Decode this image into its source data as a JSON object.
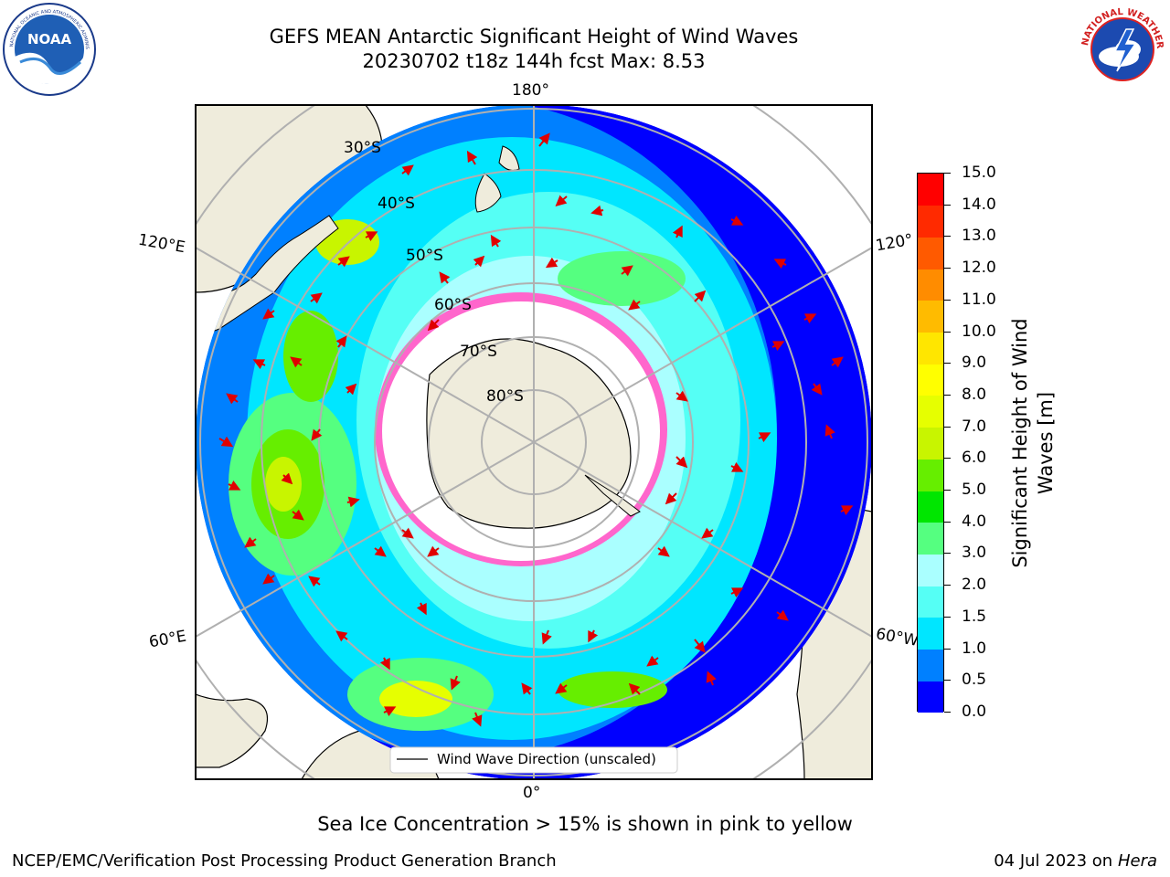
{
  "header": {
    "title_line1": "GEFS MEAN Antarctic Significant Height of Wind Waves",
    "title_line2": "20230702 t18z 144h fcst   Max: 8.53"
  },
  "logos": {
    "left": "NOAA",
    "left_ring_text": "NATIONAL OCEANIC AND ATMOSPHERIC ADMINISTRATION · U.S. DEPARTMENT OF COMMERCE",
    "right_ring_text": "NATIONAL WEATHER SERVICE"
  },
  "map": {
    "longitude_labels": {
      "top": "180°",
      "bottom": "0°",
      "left_upper": "120°E",
      "left_lower": "60°E",
      "right_upper": "120°",
      "right_lower": "60°W"
    },
    "latitude_labels": [
      "30°S",
      "40°S",
      "50°S",
      "60°S",
      "70°S",
      "80°S"
    ],
    "legend_label": "Wind Wave Direction (unscaled)"
  },
  "colorbar": {
    "title": "Significant Height of Wind Waves [m]",
    "ticks": [
      "0.0",
      "0.5",
      "1.0",
      "1.5",
      "2.0",
      "3.0",
      "4.0",
      "5.0",
      "6.0",
      "7.0",
      "8.0",
      "9.0",
      "10.0",
      "11.0",
      "12.0",
      "13.0",
      "14.0",
      "15.0"
    ],
    "colors": [
      "#0000ff",
      "#0080ff",
      "#00e6ff",
      "#55fff5",
      "#aaffff",
      "#55ff80",
      "#00e600",
      "#66ee00",
      "#c8f500",
      "#e6ff00",
      "#ffff00",
      "#ffe600",
      "#ffbb00",
      "#ff8c00",
      "#ff5a00",
      "#ff2a00",
      "#ff0000"
    ]
  },
  "footer": {
    "note": "Sea Ice Concentration > 15% is shown in pink to yellow",
    "left": "NCEP/EMC/Verification Post Processing Product Generation Branch",
    "date": "04 Jul 2023 on",
    "host": "Hera"
  }
}
